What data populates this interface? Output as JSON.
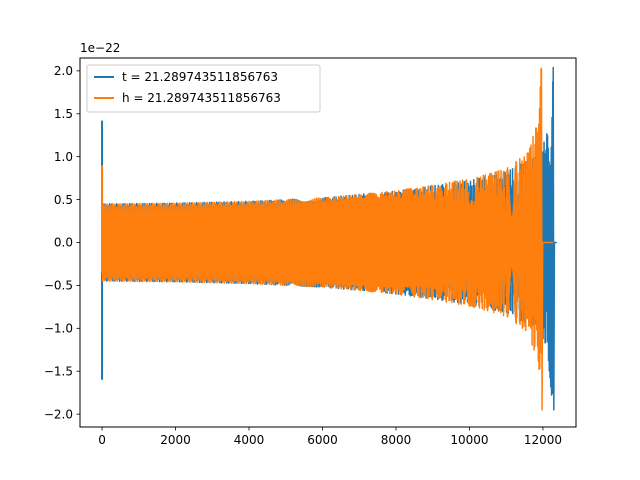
{
  "chart_data": {
    "type": "line",
    "title": "",
    "xlabel": "",
    "ylabel": "",
    "y_offset_label": "1e−22",
    "xlim": [
      -600,
      12900
    ],
    "ylim": [
      -2.15,
      2.15
    ],
    "x_ticks": [
      0,
      2000,
      4000,
      6000,
      8000,
      10000,
      12000
    ],
    "x_tick_labels": [
      "0",
      "2000",
      "4000",
      "6000",
      "8000",
      "10000",
      "12000"
    ],
    "y_ticks": [
      -2.0,
      -1.5,
      -1.0,
      -0.5,
      0.0,
      0.5,
      1.0,
      1.5,
      2.0
    ],
    "y_tick_labels": [
      "−2.0",
      "−1.5",
      "−1.0",
      "−0.5",
      "0.0",
      "0.5",
      "1.0",
      "1.5",
      "2.0"
    ],
    "grid": false,
    "legend_placement": "upper-left",
    "series": [
      {
        "name": "t = 21.289743511856763",
        "color": "#1f77b4",
        "start_spike": {
          "x": 0,
          "y_max": 1.42,
          "y_min": -1.6
        },
        "envelope": [
          {
            "x": 0,
            "amp": 0.45
          },
          {
            "x": 2000,
            "amp": 0.46
          },
          {
            "x": 4000,
            "amp": 0.48
          },
          {
            "x": 6000,
            "amp": 0.52
          },
          {
            "x": 8000,
            "amp": 0.6
          },
          {
            "x": 10000,
            "amp": 0.72
          },
          {
            "x": 11000,
            "amp": 0.82
          },
          {
            "x": 11800,
            "amp": 1.0
          },
          {
            "x": 12100,
            "amp": 1.25
          },
          {
            "x": 12200,
            "amp": 1.6
          },
          {
            "x": 12270,
            "amp": 2.04
          }
        ],
        "merger_x": 12280,
        "peak_max": 2.04,
        "peak_min": -1.95,
        "ringdown_end_x": 12380
      },
      {
        "name": "h = 21.289743511856763",
        "color": "#ff7f0e",
        "start_spike": {
          "x": 0,
          "y_max": 0.9,
          "y_min": -0.35
        },
        "envelope": [
          {
            "x": 0,
            "amp": 0.45
          },
          {
            "x": 2000,
            "amp": 0.46
          },
          {
            "x": 4000,
            "amp": 0.48
          },
          {
            "x": 6000,
            "amp": 0.52
          },
          {
            "x": 8000,
            "amp": 0.6
          },
          {
            "x": 10000,
            "amp": 0.74
          },
          {
            "x": 11000,
            "amp": 0.86
          },
          {
            "x": 11600,
            "amp": 1.05
          },
          {
            "x": 11850,
            "amp": 1.4
          },
          {
            "x": 11950,
            "amp": 2.03
          }
        ],
        "merger_x": 11960,
        "peak_max": 2.03,
        "peak_min": -1.95,
        "ringdown_end_x": 12280
      }
    ]
  }
}
